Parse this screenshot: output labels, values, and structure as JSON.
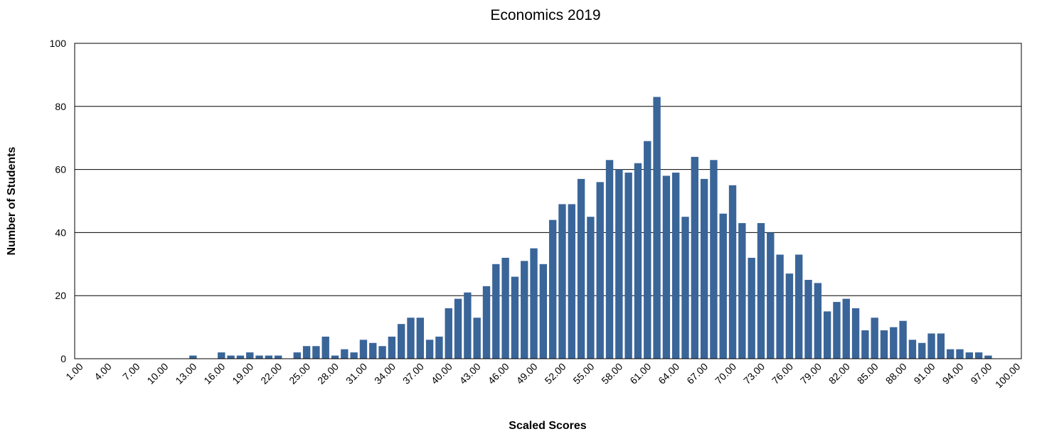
{
  "chart_data": {
    "type": "bar",
    "title": "Economics 2019",
    "xlabel": "Scaled Scores",
    "ylabel": "Number of Students",
    "ylim": [
      0,
      100
    ],
    "yticks": [
      "0",
      "20",
      "40",
      "60",
      "80",
      "100"
    ],
    "xtick_labels": [
      "1.00",
      "4.00",
      "7.00",
      "10.00",
      "13.00",
      "16.00",
      "19.00",
      "22.00",
      "25.00",
      "28.00",
      "31.00",
      "34.00",
      "37.00",
      "40.00",
      "43.00",
      "46.00",
      "49.00",
      "52.00",
      "55.00",
      "58.00",
      "61.00",
      "64.00",
      "67.00",
      "70.00",
      "73.00",
      "76.00",
      "79.00",
      "82.00",
      "85.00",
      "88.00",
      "91.00",
      "94.00",
      "97.00",
      "100.00"
    ],
    "categories": [
      1,
      2,
      3,
      4,
      5,
      6,
      7,
      8,
      9,
      10,
      11,
      12,
      13,
      14,
      15,
      16,
      17,
      18,
      19,
      20,
      21,
      22,
      23,
      24,
      25,
      26,
      27,
      28,
      29,
      30,
      31,
      32,
      33,
      34,
      35,
      36,
      37,
      38,
      39,
      40,
      41,
      42,
      43,
      44,
      45,
      46,
      47,
      48,
      49,
      50,
      51,
      52,
      53,
      54,
      55,
      56,
      57,
      58,
      59,
      60,
      61,
      62,
      63,
      64,
      65,
      66,
      67,
      68,
      69,
      70,
      71,
      72,
      73,
      74,
      75,
      76,
      77,
      78,
      79,
      80,
      81,
      82,
      83,
      84,
      85,
      86,
      87,
      88,
      89,
      90,
      91,
      92,
      93,
      94,
      95,
      96,
      97,
      98,
      99,
      100
    ],
    "values": [
      0,
      0,
      0,
      0,
      0,
      0,
      0,
      0,
      0,
      0,
      0,
      0,
      1,
      0,
      0,
      2,
      1,
      1,
      2,
      1,
      1,
      1,
      0,
      2,
      4,
      4,
      7,
      1,
      3,
      2,
      6,
      5,
      4,
      7,
      11,
      13,
      13,
      6,
      7,
      16,
      19,
      21,
      13,
      23,
      30,
      32,
      26,
      31,
      35,
      30,
      44,
      49,
      49,
      57,
      45,
      56,
      63,
      60,
      59,
      62,
      69,
      83,
      58,
      59,
      45,
      64,
      57,
      63,
      46,
      55,
      43,
      32,
      43,
      40,
      33,
      27,
      33,
      25,
      24,
      15,
      18,
      19,
      16,
      9,
      13,
      9,
      10,
      12,
      6,
      5,
      8,
      8,
      3,
      3,
      2,
      2,
      1,
      0,
      0,
      0
    ],
    "grid": true,
    "legend": "none",
    "bar_color": "#3a6599"
  }
}
